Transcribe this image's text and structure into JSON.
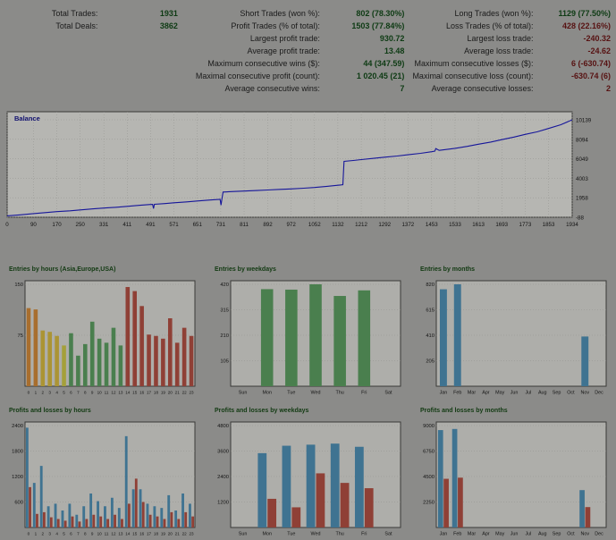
{
  "stats": {
    "rows": [
      {
        "l1": {
          "t": "Total Trades:"
        },
        "v1": {
          "t": "1931",
          "c": "g"
        },
        "l2": {
          "t": "Short Trades (won %):"
        },
        "v2": {
          "t": "802 (78.30%)",
          "c": "g"
        },
        "l3": {
          "t": "Long Trades (won %):"
        },
        "v3": {
          "t": "1129 (77.50%)",
          "c": "g"
        }
      },
      {
        "l1": {
          "t": "Total Deals:"
        },
        "v1": {
          "t": "3862",
          "c": "g"
        },
        "l2": {
          "t": "Profit Trades (% of total):"
        },
        "v2": {
          "t": "1503 (77.84%)",
          "c": "g"
        },
        "l3": {
          "t": "Loss Trades (% of total):"
        },
        "v3": {
          "t": "428 (22.16%)",
          "c": "r"
        }
      },
      {
        "l1": {
          "t": ""
        },
        "v1": {
          "t": ""
        },
        "l2": {
          "t": "Largest profit trade:"
        },
        "v2": {
          "t": "930.72",
          "c": "g"
        },
        "l3": {
          "t": "Largest loss trade:"
        },
        "v3": {
          "t": "-240.32",
          "c": "r"
        }
      },
      {
        "l1": {
          "t": ""
        },
        "v1": {
          "t": ""
        },
        "l2": {
          "t": "Average profit trade:"
        },
        "v2": {
          "t": "13.48",
          "c": "g"
        },
        "l3": {
          "t": "Average loss trade:"
        },
        "v3": {
          "t": "-24.62",
          "c": "r"
        }
      },
      {
        "l1": {
          "t": ""
        },
        "v1": {
          "t": ""
        },
        "l2": {
          "t": "Maximum consecutive wins ($):"
        },
        "v2": {
          "t": "44 (347.59)",
          "c": "g"
        },
        "l3": {
          "t": "Maximum consecutive losses ($):"
        },
        "v3": {
          "t": "6 (-630.74)",
          "c": "r"
        }
      },
      {
        "l1": {
          "t": ""
        },
        "v1": {
          "t": ""
        },
        "l2": {
          "t": "Maximal consecutive profit (count):"
        },
        "v2": {
          "t": "1 020.45 (21)",
          "c": "g"
        },
        "l3": {
          "t": "Maximal consecutive loss (count):"
        },
        "v3": {
          "t": "-630.74 (6)",
          "c": "r"
        }
      },
      {
        "l1": {
          "t": ""
        },
        "v1": {
          "t": ""
        },
        "l2": {
          "t": "Average consecutive wins:"
        },
        "v2": {
          "t": "7",
          "c": "g"
        },
        "l3": {
          "t": "Average consecutive losses:"
        },
        "v3": {
          "t": "2",
          "c": "r"
        }
      }
    ]
  },
  "chart_data": [
    {
      "type": "line",
      "title": "Balance",
      "xlim": [
        0,
        1934
      ],
      "ylim": [
        -88,
        10139
      ],
      "x_ticks": [
        0,
        90,
        170,
        250,
        331,
        411,
        491,
        571,
        651,
        731,
        811,
        892,
        972,
        1052,
        1132,
        1212,
        1292,
        1372,
        1453,
        1533,
        1613,
        1693,
        1773,
        1853,
        1934
      ],
      "y_ticks": [
        -88,
        1958,
        4003,
        6049,
        8094,
        10139
      ],
      "line_color": "#16169a",
      "points": [
        [
          0,
          60
        ],
        [
          45,
          170
        ],
        [
          90,
          300
        ],
        [
          135,
          410
        ],
        [
          170,
          500
        ],
        [
          215,
          590
        ],
        [
          250,
          680
        ],
        [
          295,
          790
        ],
        [
          331,
          880
        ],
        [
          375,
          965
        ],
        [
          411,
          1060
        ],
        [
          455,
          1165
        ],
        [
          491,
          1255
        ],
        [
          498,
          1265
        ],
        [
          501,
          820
        ],
        [
          504,
          1275
        ],
        [
          540,
          1350
        ],
        [
          571,
          1430
        ],
        [
          615,
          1530
        ],
        [
          651,
          1620
        ],
        [
          695,
          1725
        ],
        [
          729,
          1800
        ],
        [
          732,
          1185
        ],
        [
          735,
          1820
        ],
        [
          739,
          2560
        ],
        [
          775,
          2610
        ],
        [
          811,
          2660
        ],
        [
          855,
          2715
        ],
        [
          892,
          2770
        ],
        [
          935,
          2835
        ],
        [
          972,
          2890
        ],
        [
          1015,
          2965
        ],
        [
          1052,
          3040
        ],
        [
          1095,
          3155
        ],
        [
          1132,
          3270
        ],
        [
          1149,
          3330
        ],
        [
          1153,
          5780
        ],
        [
          1185,
          5870
        ],
        [
          1212,
          5960
        ],
        [
          1255,
          6095
        ],
        [
          1292,
          6220
        ],
        [
          1335,
          6340
        ],
        [
          1372,
          6470
        ],
        [
          1415,
          6625
        ],
        [
          1453,
          6790
        ],
        [
          1464,
          6855
        ],
        [
          1467,
          7120
        ],
        [
          1479,
          6930
        ],
        [
          1533,
          7150
        ],
        [
          1575,
          7350
        ],
        [
          1613,
          7580
        ],
        [
          1655,
          7800
        ],
        [
          1693,
          8060
        ],
        [
          1735,
          8330
        ],
        [
          1773,
          8610
        ],
        [
          1815,
          8880
        ],
        [
          1853,
          9230
        ],
        [
          1895,
          9620
        ],
        [
          1934,
          10139
        ]
      ]
    },
    {
      "type": "bar",
      "title": "Entries by hours (Asia,Europe,USA)",
      "categories": [
        "0",
        "1",
        "2",
        "3",
        "4",
        "5",
        "6",
        "7",
        "8",
        "9",
        "10",
        "11",
        "12",
        "13",
        "14",
        "15",
        "16",
        "17",
        "18",
        "19",
        "20",
        "21",
        "22",
        "23"
      ],
      "values": [
        115,
        113,
        82,
        80,
        74,
        60,
        78,
        45,
        62,
        95,
        70,
        64,
        86,
        60,
        146,
        140,
        118,
        76,
        74,
        70,
        100,
        64,
        86,
        74
      ],
      "bar_colors": [
        "#a86e2e",
        "#a86e2e",
        "#ab9434",
        "#ab9434",
        "#ab9434",
        "#a4a03a",
        "#4a7f4e",
        "#4a7f4e",
        "#4a7f4e",
        "#4a7f4e",
        "#4a7f4e",
        "#4a7f4e",
        "#4a7f4e",
        "#4a7f4e",
        "#8f4036",
        "#8f4036",
        "#8f4036",
        "#8f4036",
        "#8f4036",
        "#8f4036",
        "#8f4036",
        "#8f4036",
        "#8f4036",
        "#8f4036"
      ],
      "y_ticks": [
        75,
        150
      ],
      "ylim": [
        0,
        150
      ]
    },
    {
      "type": "bar",
      "title": "Entries by weekdays",
      "categories": [
        "Sun",
        "Mon",
        "Tue",
        "Wed",
        "Thu",
        "Fri",
        "Sat"
      ],
      "values": [
        0,
        400,
        398,
        420,
        372,
        395,
        0
      ],
      "color": "#4a7f4e",
      "y_ticks": [
        105,
        210,
        315,
        420
      ],
      "ylim": [
        0,
        420
      ]
    },
    {
      "type": "bar",
      "title": "Entries by months",
      "categories": [
        "Jan",
        "Feb",
        "Mar",
        "Apr",
        "May",
        "Jun",
        "Jul",
        "Aug",
        "Sep",
        "Oct",
        "Nov",
        "Dec"
      ],
      "values": [
        780,
        820,
        0,
        0,
        0,
        0,
        0,
        0,
        0,
        0,
        400,
        0
      ],
      "color": "#3f7391",
      "y_ticks": [
        205,
        410,
        615,
        820
      ],
      "ylim": [
        0,
        820
      ]
    },
    {
      "type": "grouped-bar",
      "title": "Profits and losses by hours",
      "categories": [
        "0",
        "1",
        "2",
        "3",
        "4",
        "5",
        "6",
        "7",
        "8",
        "9",
        "10",
        "11",
        "12",
        "13",
        "14",
        "15",
        "16",
        "17",
        "18",
        "19",
        "20",
        "21",
        "22",
        "23"
      ],
      "series": [
        {
          "name": "profit",
          "color": "#3f7391",
          "values": [
            2350,
            1050,
            1450,
            500,
            560,
            400,
            560,
            300,
            500,
            800,
            620,
            500,
            700,
            460,
            2150,
            900,
            900,
            560,
            500,
            460,
            760,
            400,
            800,
            560
          ]
        },
        {
          "name": "loss",
          "color": "#8f4036",
          "values": [
            950,
            320,
            360,
            240,
            200,
            160,
            260,
            140,
            200,
            300,
            260,
            200,
            300,
            200,
            560,
            1150,
            600,
            300,
            260,
            200,
            360,
            200,
            360,
            260
          ]
        }
      ],
      "y_ticks": [
        600,
        1200,
        1800,
        2400
      ],
      "ylim": [
        0,
        2400
      ]
    },
    {
      "type": "grouped-bar",
      "title": "Profits and losses by weekdays",
      "categories": [
        "Sun",
        "Mon",
        "Tue",
        "Wed",
        "Thu",
        "Fri",
        "Sat"
      ],
      "series": [
        {
          "name": "profit",
          "color": "#3f7391",
          "values": [
            0,
            3500,
            3850,
            3900,
            3950,
            3800,
            0
          ]
        },
        {
          "name": "loss",
          "color": "#8f4036",
          "values": [
            0,
            1350,
            950,
            2550,
            2100,
            1850,
            0
          ]
        }
      ],
      "y_ticks": [
        1200,
        2400,
        3600,
        4800
      ],
      "ylim": [
        0,
        4800
      ]
    },
    {
      "type": "grouped-bar",
      "title": "Profits and losses by months",
      "categories": [
        "Jan",
        "Feb",
        "Mar",
        "Apr",
        "May",
        "Jun",
        "Jul",
        "Aug",
        "Sep",
        "Oct",
        "Nov",
        "Dec"
      ],
      "series": [
        {
          "name": "profit",
          "color": "#3f7391",
          "values": [
            8600,
            8700,
            0,
            0,
            0,
            0,
            0,
            0,
            0,
            0,
            3300,
            0
          ]
        },
        {
          "name": "loss",
          "color": "#8f4036",
          "values": [
            4300,
            4400,
            0,
            0,
            0,
            0,
            0,
            0,
            0,
            0,
            1800,
            0
          ]
        }
      ],
      "y_ticks": [
        2250,
        4500,
        6750,
        9000
      ],
      "ylim": [
        0,
        9000
      ]
    }
  ],
  "colors": {
    "page_bg": "#8b8b89",
    "plot_bg": "#b6b6b2",
    "small_plot_bg": "#aeaeaa",
    "grid": "#93938f",
    "border": "#3a3a38",
    "profit_green": "#0e3b14",
    "loss_red": "#571212",
    "balance_line": "#16169a"
  }
}
